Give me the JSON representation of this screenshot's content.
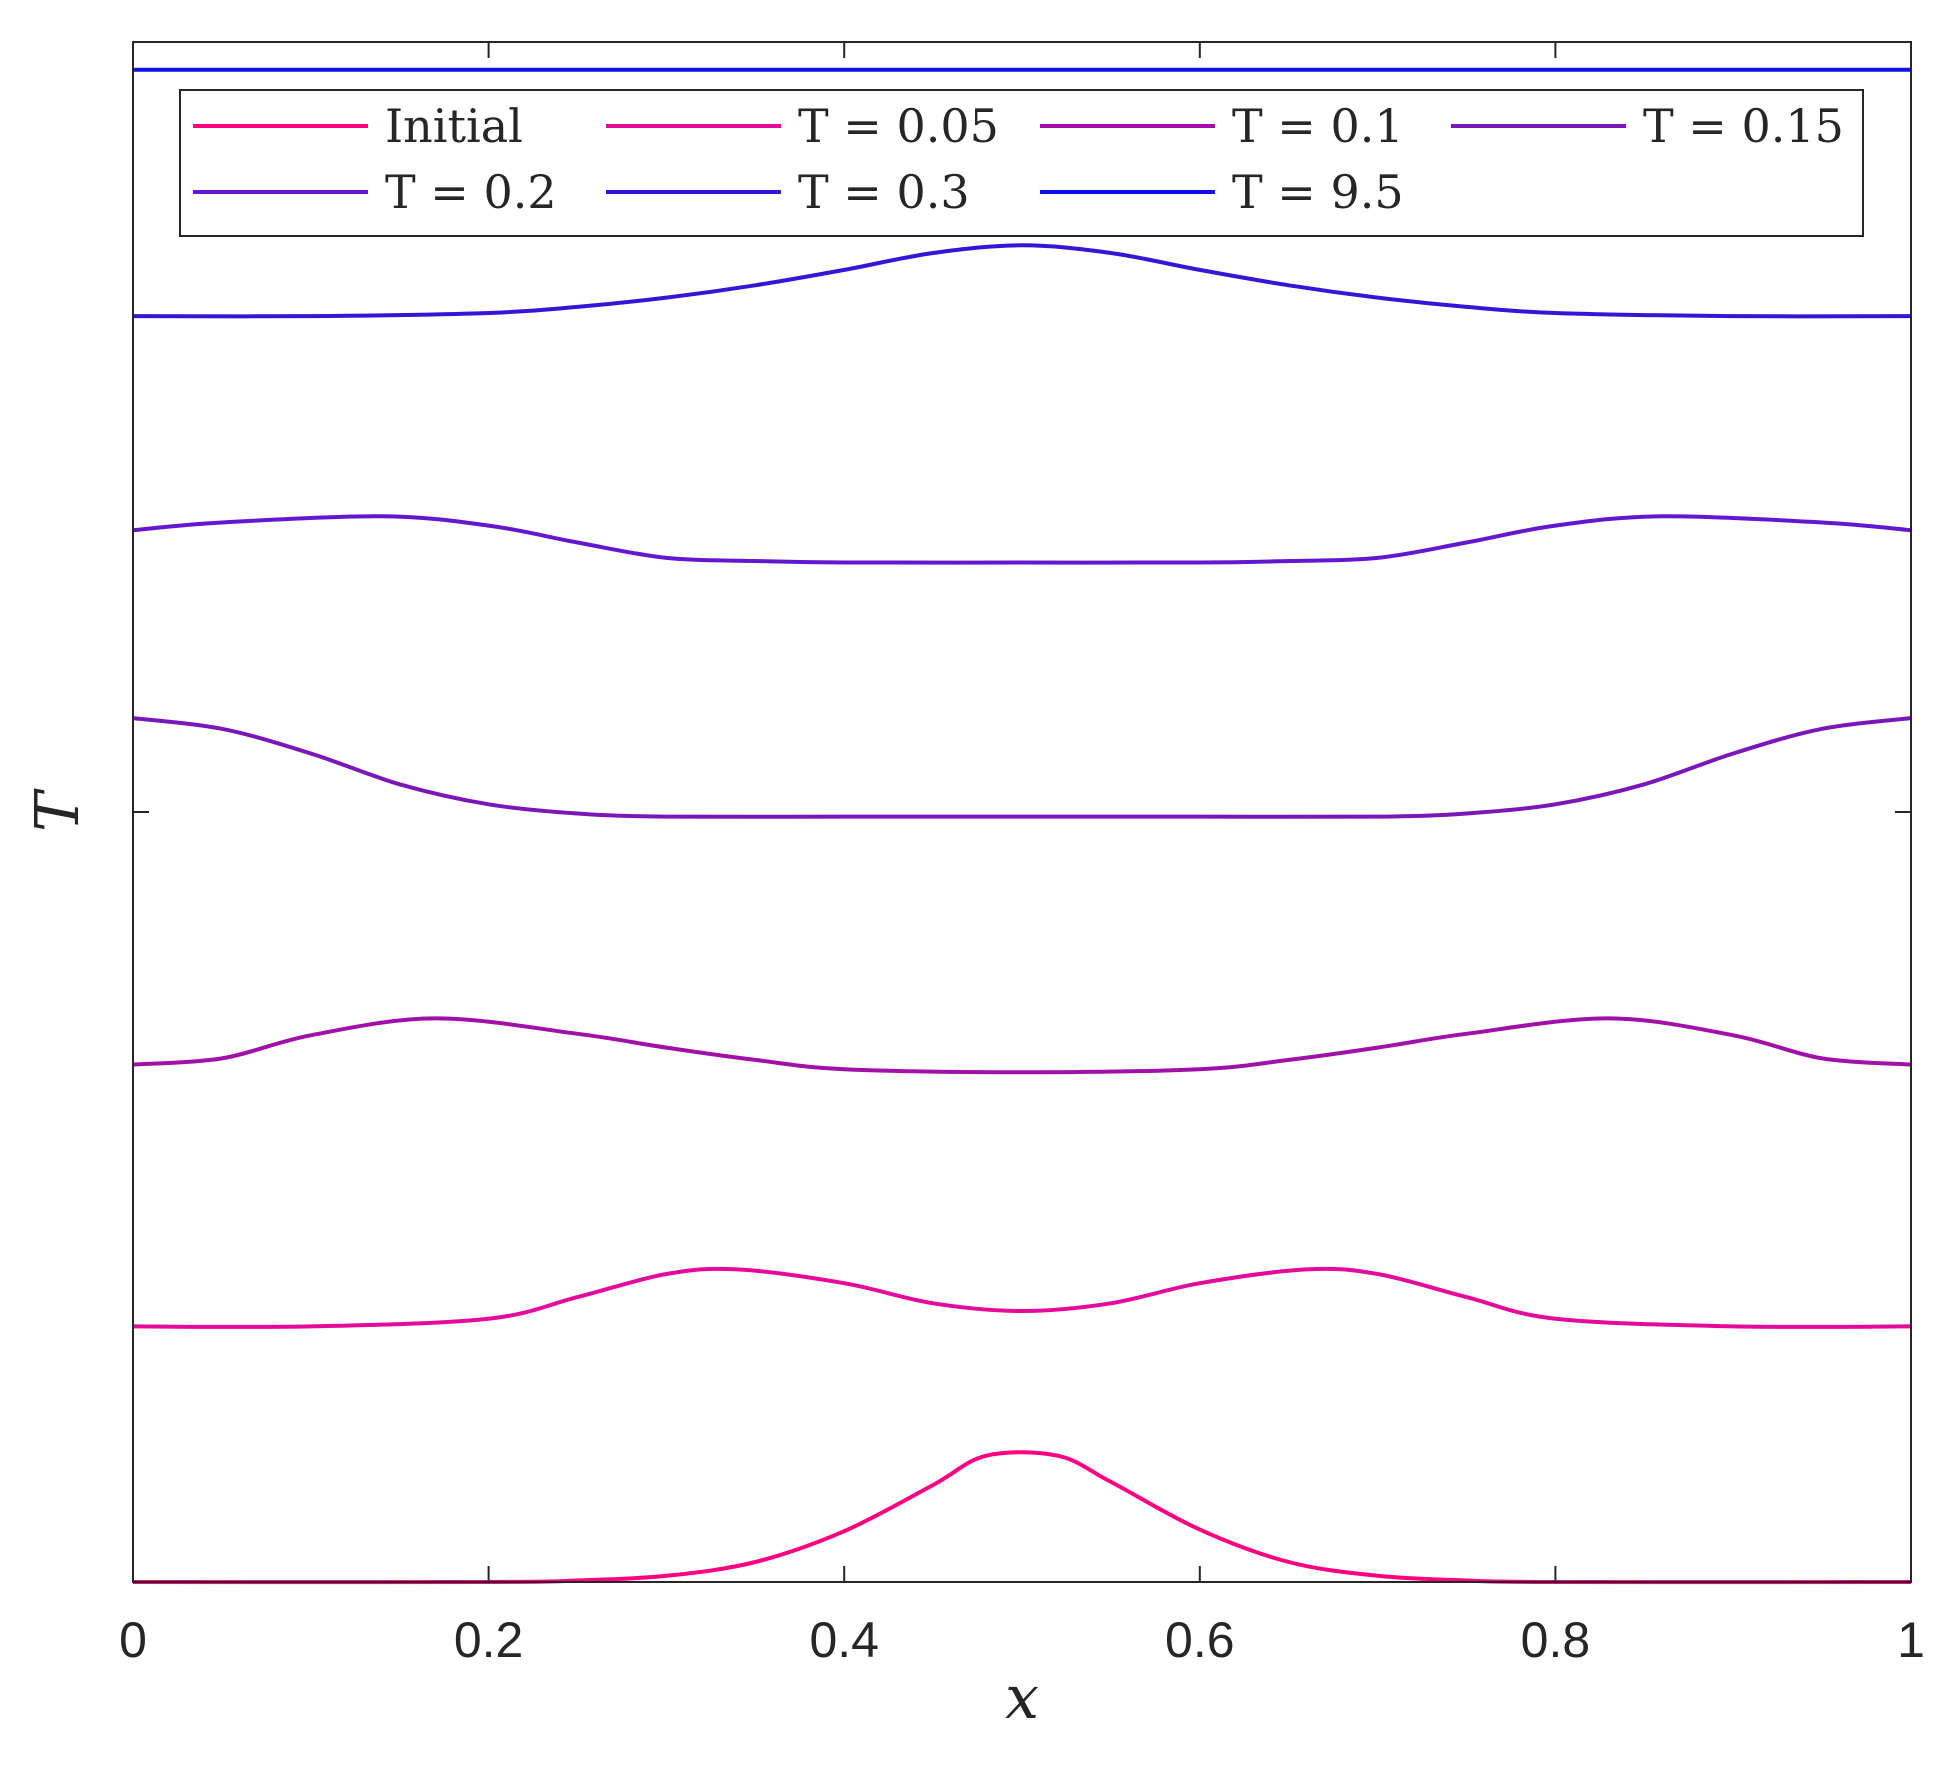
{
  "chart_data": {
    "type": "line",
    "title": "",
    "xlabel": "x",
    "ylabel": "T",
    "xlim": [
      0,
      1
    ],
    "ylim": [
      0,
      1
    ],
    "xticks": [
      0,
      0.2,
      0.4,
      0.6,
      0.8,
      1
    ],
    "xtick_labels": [
      "0",
      "0.2",
      "0.4",
      "0.6",
      "0.8",
      "1"
    ],
    "yticks": [
      0.5
    ],
    "ytick_labels": [
      ""
    ],
    "grid": false,
    "legend_placement": "top",
    "series": [
      {
        "name": "Initial",
        "color": "#ff0080",
        "x": [
          0,
          0.2,
          0.25,
          0.3,
          0.35,
          0.4,
          0.45,
          0.48,
          0.52,
          0.55,
          0.6,
          0.65,
          0.7,
          0.75,
          0.8,
          1
        ],
        "y": [
          0,
          0,
          0.001,
          0.004,
          0.013,
          0.033,
          0.063,
          0.082,
          0.082,
          0.065,
          0.034,
          0.013,
          0.004,
          0.001,
          0,
          0
        ]
      },
      {
        "name": "T = 0.05",
        "color": "#e40a9c",
        "x": [
          0,
          0.1,
          0.2,
          0.25,
          0.3,
          0.34,
          0.4,
          0.45,
          0.5,
          0.55,
          0.6,
          0.66,
          0.7,
          0.75,
          0.8,
          0.9,
          1
        ],
        "y": [
          0.166,
          0.166,
          0.171,
          0.185,
          0.2,
          0.203,
          0.194,
          0.181,
          0.176,
          0.181,
          0.194,
          0.203,
          0.2,
          0.185,
          0.171,
          0.166,
          0.166
        ]
      },
      {
        "name": "T = 0.1",
        "color": "#a111aa",
        "x": [
          0,
          0.05,
          0.1,
          0.17,
          0.25,
          0.3,
          0.35,
          0.4,
          0.5,
          0.6,
          0.65,
          0.7,
          0.75,
          0.83,
          0.9,
          0.95,
          1
        ],
        "y": [
          0.336,
          0.34,
          0.355,
          0.366,
          0.356,
          0.347,
          0.339,
          0.333,
          0.331,
          0.333,
          0.339,
          0.347,
          0.356,
          0.366,
          0.355,
          0.34,
          0.336
        ]
      },
      {
        "name": "T = 0.15",
        "color": "#7b17b8",
        "x": [
          0,
          0.05,
          0.1,
          0.15,
          0.2,
          0.25,
          0.3,
          0.4,
          0.5,
          0.6,
          0.7,
          0.75,
          0.8,
          0.85,
          0.9,
          0.95,
          1
        ],
        "y": [
          0.561,
          0.554,
          0.538,
          0.518,
          0.505,
          0.499,
          0.497,
          0.497,
          0.497,
          0.497,
          0.497,
          0.499,
          0.505,
          0.518,
          0.538,
          0.554,
          0.561
        ]
      },
      {
        "name": "T = 0.2",
        "color": "#6318d0",
        "x": [
          0,
          0.05,
          0.14,
          0.2,
          0.25,
          0.3,
          0.35,
          0.4,
          0.5,
          0.6,
          0.65,
          0.7,
          0.75,
          0.8,
          0.86,
          0.95,
          1
        ],
        "y": [
          0.683,
          0.688,
          0.692,
          0.686,
          0.675,
          0.665,
          0.663,
          0.662,
          0.662,
          0.662,
          0.663,
          0.665,
          0.675,
          0.686,
          0.692,
          0.688,
          0.683
        ]
      },
      {
        "name": "T = 0.3",
        "color": "#3416d6",
        "x": [
          0,
          0.1,
          0.2,
          0.25,
          0.3,
          0.35,
          0.4,
          0.45,
          0.5,
          0.55,
          0.6,
          0.65,
          0.7,
          0.75,
          0.8,
          0.9,
          1
        ],
        "y": [
          0.822,
          0.822,
          0.824,
          0.828,
          0.834,
          0.842,
          0.852,
          0.863,
          0.868,
          0.863,
          0.852,
          0.842,
          0.834,
          0.828,
          0.824,
          0.822,
          0.822
        ]
      },
      {
        "name": "T = 9.5",
        "color": "#1010e0",
        "x": [
          0,
          0.5,
          1
        ],
        "y": [
          0.982,
          0.982,
          0.982
        ]
      }
    ]
  }
}
